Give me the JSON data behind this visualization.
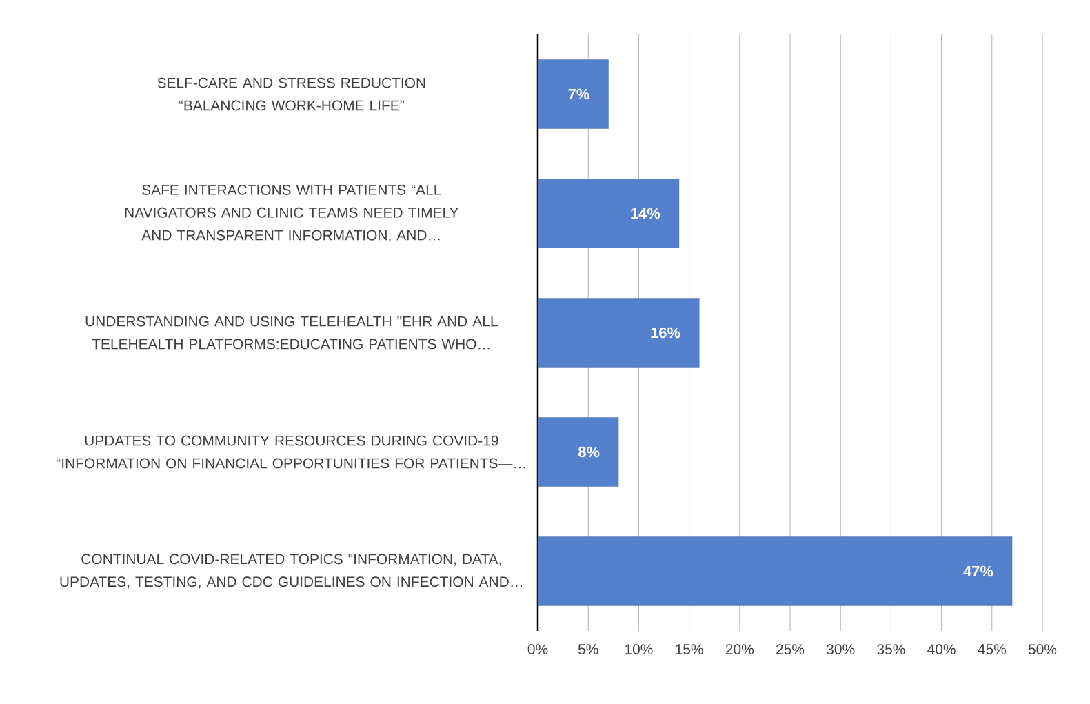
{
  "chart_data": {
    "type": "bar",
    "orientation": "horizontal",
    "categories": [
      "SELF-CARE AND STRESS REDUCTION “BALANCING WORK-HOME LIFE”",
      "SAFE INTERACTIONS WITH PATIENTS “ALL NAVIGATORS AND CLINIC TEAMS NEED TIMELY AND TRANSPARENT INFORMATION, AND…",
      "UNDERSTANDING AND USING TELEHEALTH \"EHR AND ALL TELEHEALTH PLATFORMS:EDUCATING PATIENTS WHO…",
      "UPDATES TO COMMUNITY RESOURCES DURING COVID-19 “INFORMATION ON FINANCIAL OPPORTUNITIES FOR PATIENTS—…",
      "CONTINUAL COVID-RELATED TOPICS \"INFORMATION, DATA, UPDATES, TESTING, AND CDC GUIDELINES ON INFECTION AND…"
    ],
    "values": [
      7,
      14,
      16,
      8,
      47
    ],
    "value_labels": [
      "7%",
      "14%",
      "16%",
      "8%",
      "47%"
    ],
    "color": "#5580cc",
    "xlim": [
      0,
      50
    ],
    "xticks": [
      {
        "value": 0,
        "label": "0%"
      },
      {
        "value": 5,
        "label": "5%"
      },
      {
        "value": 10,
        "label": "10%"
      },
      {
        "value": 15,
        "label": "15%"
      },
      {
        "value": 20,
        "label": "20%"
      },
      {
        "value": 25,
        "label": "25%"
      },
      {
        "value": 30,
        "label": "30%"
      },
      {
        "value": 35,
        "label": "35%"
      },
      {
        "value": 40,
        "label": "40%"
      },
      {
        "value": 45,
        "label": "45%"
      },
      {
        "value": 50,
        "label": "50%"
      }
    ],
    "grid": "x"
  }
}
